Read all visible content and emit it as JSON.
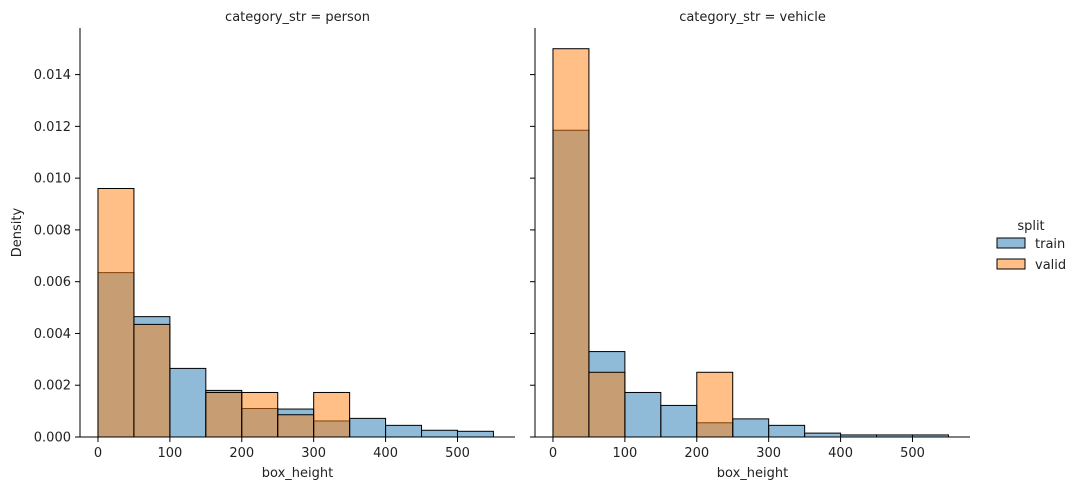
{
  "chart_data": [
    {
      "type": "histogram",
      "title": "category_str = person",
      "xlabel": "box_height",
      "ylabel": "Density",
      "xlim": [
        -25,
        580
      ],
      "ylim": [
        0,
        0.0158
      ],
      "xticks": [
        0,
        100,
        200,
        300,
        400,
        500
      ],
      "yticks": [
        0.0,
        0.002,
        0.004,
        0.006,
        0.008,
        0.01,
        0.012,
        0.014
      ],
      "bins": [
        0,
        50,
        100,
        150,
        200,
        250,
        300,
        350,
        400,
        450,
        500,
        550
      ],
      "series": [
        {
          "name": "train",
          "values": [
            0.00635,
            0.00465,
            0.00265,
            0.0018,
            0.0011,
            0.00108,
            0.00062,
            0.00072,
            0.00045,
            0.00026,
            0.00022
          ]
        },
        {
          "name": "valid",
          "values": [
            0.0096,
            0.00435,
            0,
            0.00172,
            0.00172,
            0.00086,
            0.00172,
            0,
            0,
            0,
            0
          ]
        }
      ]
    },
    {
      "type": "histogram",
      "title": "category_str = vehicle",
      "xlabel": "box_height",
      "ylabel": "",
      "xlim": [
        -25,
        580
      ],
      "ylim": [
        0,
        0.0158
      ],
      "xticks": [
        0,
        100,
        200,
        300,
        400,
        500
      ],
      "yticks": [
        0.0,
        0.002,
        0.004,
        0.006,
        0.008,
        0.01,
        0.012,
        0.014
      ],
      "bins": [
        0,
        50,
        100,
        150,
        200,
        250,
        300,
        350,
        400,
        450,
        500,
        550
      ],
      "series": [
        {
          "name": "train",
          "values": [
            0.01185,
            0.0033,
            0.00172,
            0.00122,
            0.00055,
            0.0007,
            0.00045,
            0.00015,
            8e-05,
            8e-05,
            8e-05
          ]
        },
        {
          "name": "valid",
          "values": [
            0.015,
            0.0025,
            0,
            0,
            0.0025,
            0,
            0,
            0,
            0,
            0,
            0
          ]
        }
      ]
    }
  ],
  "legend": {
    "title": "split",
    "items": [
      {
        "label": "train",
        "color": "#1f77b4"
      },
      {
        "label": "valid",
        "color": "#ff7f0e"
      }
    ]
  },
  "colors": {
    "train": "#1f77b4",
    "valid": "#ff7f0e",
    "alpha": 0.5
  }
}
